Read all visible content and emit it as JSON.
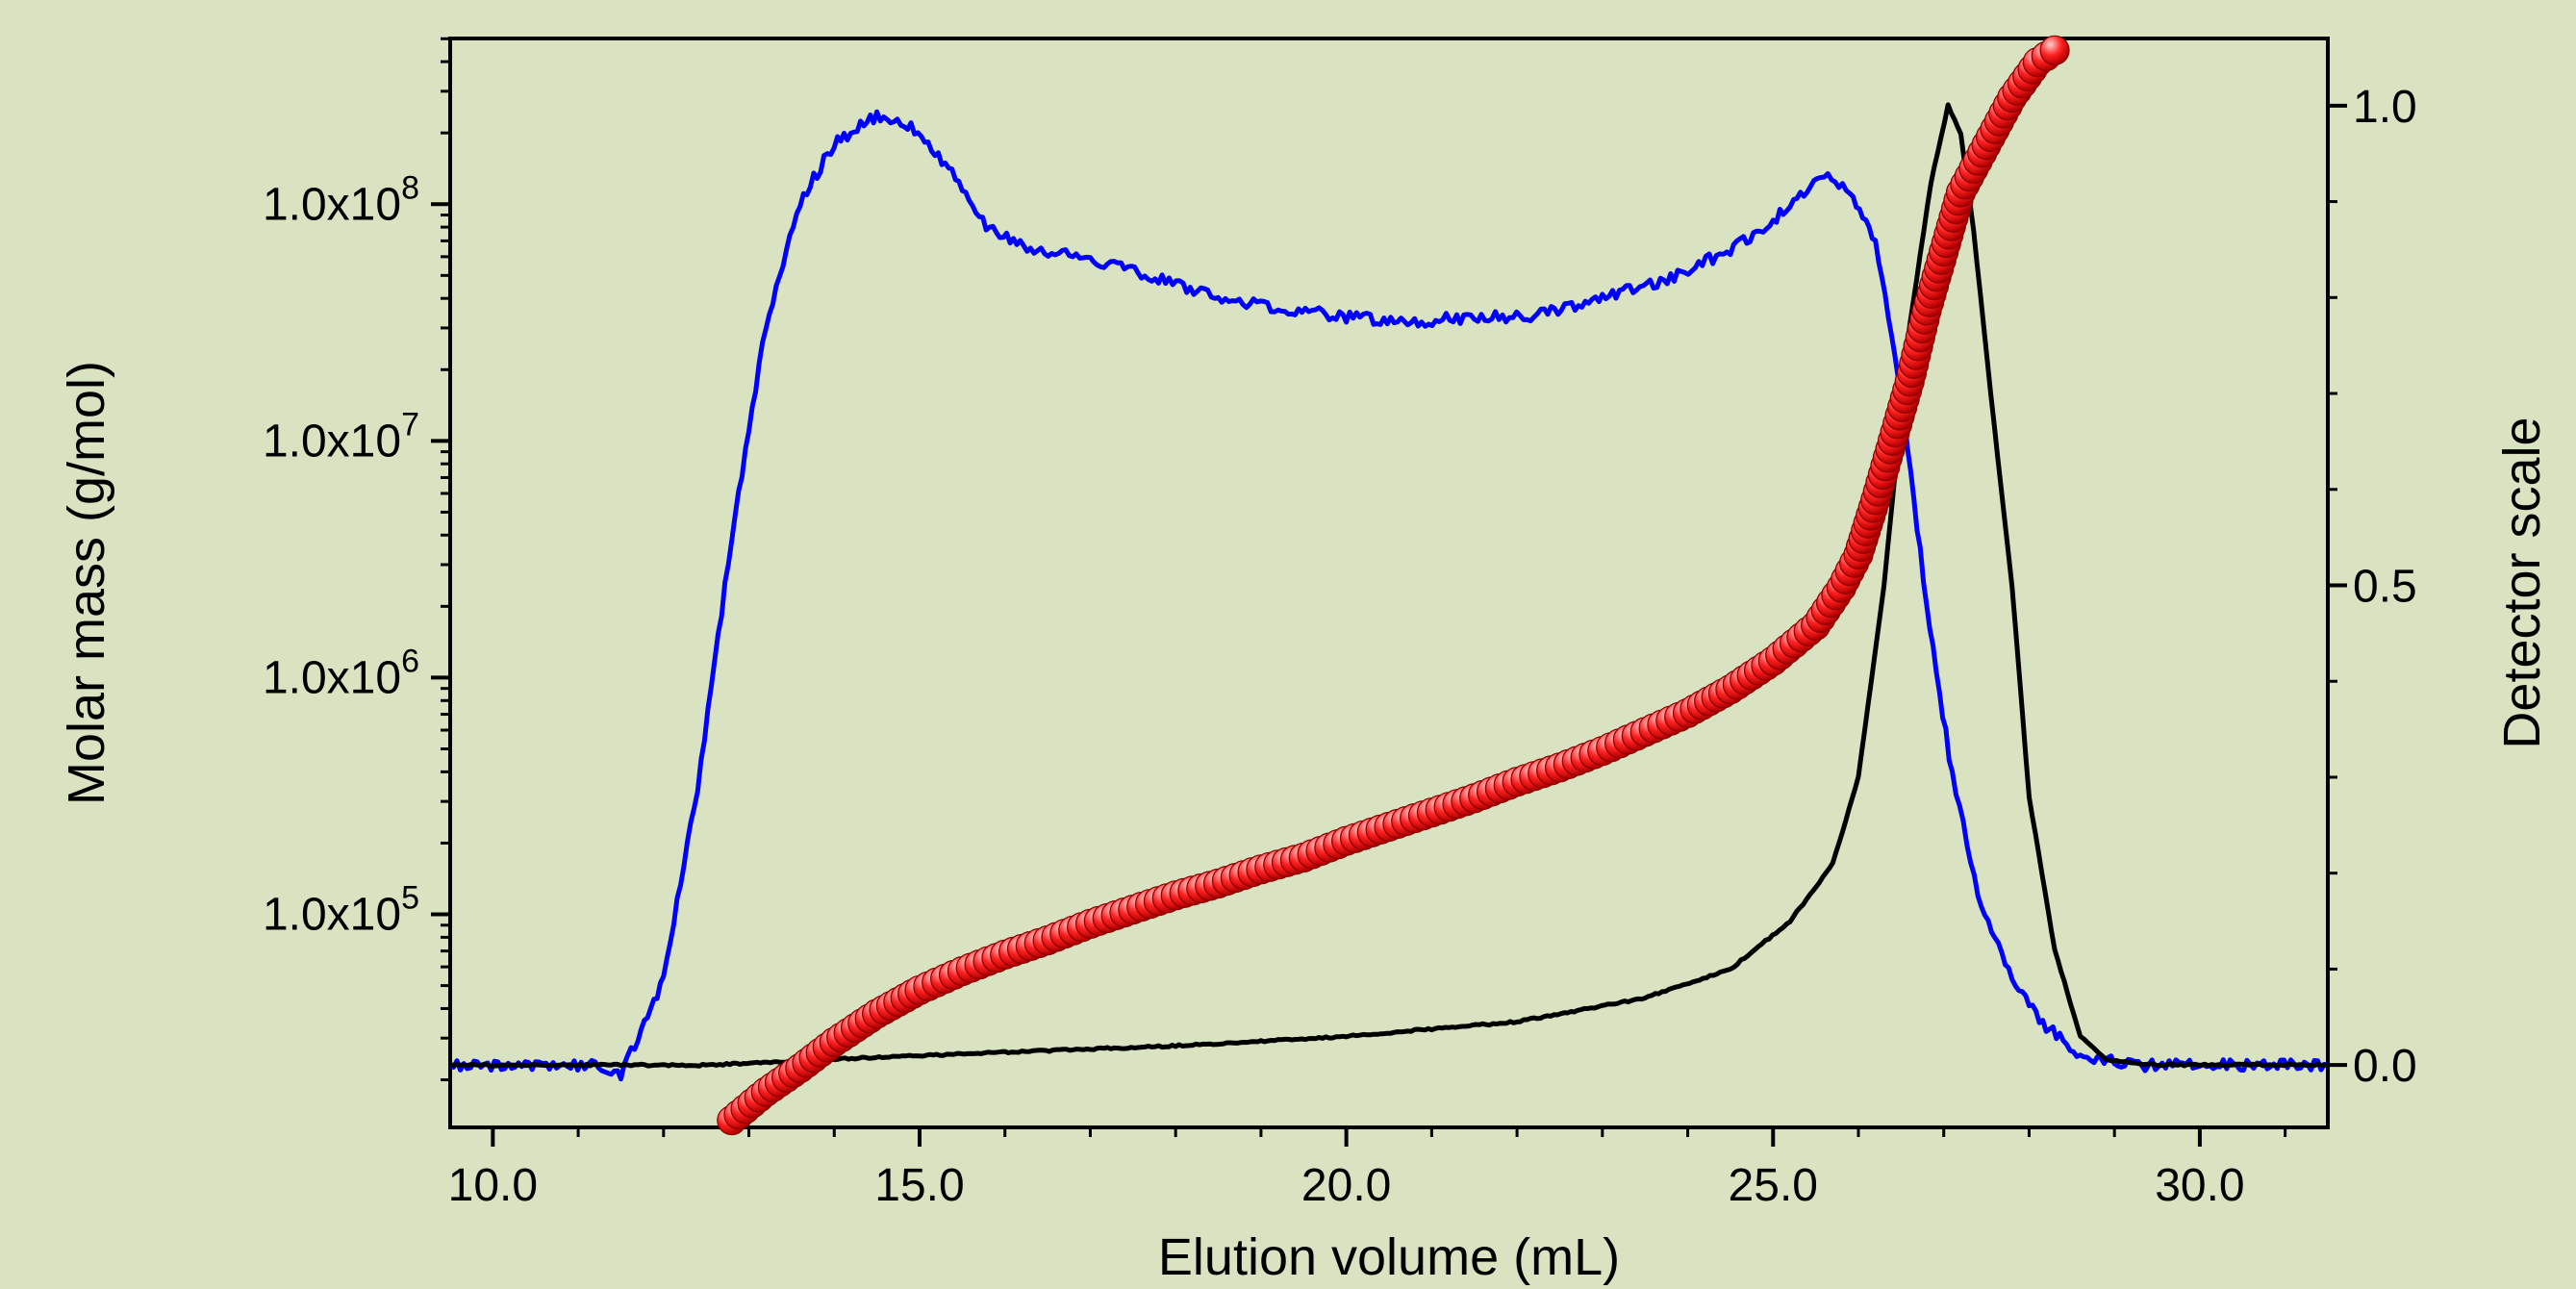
{
  "chart_data": {
    "type": "line",
    "title": "",
    "xlabel": "Elution volume (mL)",
    "ylabel_left": "Molar mass (g/mol)",
    "ylabel_right": "Detector scale",
    "xlim": [
      9.5,
      31.5
    ],
    "ylim_left_log10": [
      4.1,
      8.7
    ],
    "ylim_right": [
      -0.065,
      1.07
    ],
    "left_log_scale": true,
    "grid": false,
    "x_ticks": [
      {
        "value": 10,
        "label": "10.0"
      },
      {
        "value": 15,
        "label": "15.0"
      },
      {
        "value": 20,
        "label": "20.0"
      },
      {
        "value": 25,
        "label": "25.0"
      },
      {
        "value": 30,
        "label": "30.0"
      }
    ],
    "y_left_ticks": [
      {
        "exp": 5,
        "base": "1.0x10",
        "sup": "5"
      },
      {
        "exp": 6,
        "base": "1.0x10",
        "sup": "6"
      },
      {
        "exp": 7,
        "base": "1.0x10",
        "sup": "7"
      },
      {
        "exp": 8,
        "base": "1.0x10",
        "sup": "8"
      }
    ],
    "y_right_ticks": [
      {
        "value": 0.0,
        "label": "0.0"
      },
      {
        "value": 0.5,
        "label": "0.5"
      },
      {
        "value": 1.0,
        "label": "1.0"
      }
    ],
    "series": [
      {
        "axis": "right",
        "color": "#0000ff",
        "style": "line",
        "points": [
          [
            9.5,
            0.0
          ],
          [
            10.5,
            0.0
          ],
          [
            11.2,
            0.0
          ],
          [
            11.5,
            -0.01
          ],
          [
            11.7,
            0.03
          ],
          [
            12.0,
            0.09
          ],
          [
            12.4,
            0.29
          ],
          [
            12.8,
            0.55
          ],
          [
            13.2,
            0.77
          ],
          [
            13.6,
            0.9
          ],
          [
            14.0,
            0.96
          ],
          [
            14.5,
            0.99
          ],
          [
            14.9,
            0.98
          ],
          [
            15.3,
            0.94
          ],
          [
            15.7,
            0.88
          ],
          [
            16.3,
            0.85
          ],
          [
            17.0,
            0.84
          ],
          [
            17.8,
            0.82
          ],
          [
            18.5,
            0.8
          ],
          [
            19.2,
            0.79
          ],
          [
            20.0,
            0.78
          ],
          [
            20.8,
            0.775
          ],
          [
            21.5,
            0.78
          ],
          [
            22.2,
            0.78
          ],
          [
            23.0,
            0.8
          ],
          [
            23.8,
            0.82
          ],
          [
            24.5,
            0.85
          ],
          [
            25.0,
            0.88
          ],
          [
            25.6,
            0.93
          ],
          [
            25.9,
            0.91
          ],
          [
            26.2,
            0.86
          ],
          [
            26.5,
            0.7
          ],
          [
            26.8,
            0.48
          ],
          [
            27.1,
            0.3
          ],
          [
            27.4,
            0.18
          ],
          [
            27.8,
            0.09
          ],
          [
            28.2,
            0.04
          ],
          [
            28.6,
            0.01
          ],
          [
            29.2,
            0.0
          ],
          [
            30.0,
            0.0
          ],
          [
            31.5,
            0.0
          ]
        ]
      },
      {
        "axis": "right",
        "color": "#000000",
        "style": "line",
        "points": [
          [
            9.5,
            0.0
          ],
          [
            12.5,
            0.0
          ],
          [
            15.0,
            0.01
          ],
          [
            18.0,
            0.02
          ],
          [
            20.0,
            0.03
          ],
          [
            22.0,
            0.045
          ],
          [
            23.5,
            0.07
          ],
          [
            24.5,
            0.1
          ],
          [
            25.2,
            0.15
          ],
          [
            25.7,
            0.21
          ],
          [
            26.0,
            0.3
          ],
          [
            26.3,
            0.5
          ],
          [
            26.6,
            0.77
          ],
          [
            26.85,
            0.92
          ],
          [
            27.05,
            1.0
          ],
          [
            27.2,
            0.97
          ],
          [
            27.35,
            0.87
          ],
          [
            27.55,
            0.7
          ],
          [
            27.8,
            0.5
          ],
          [
            28.0,
            0.28
          ],
          [
            28.3,
            0.12
          ],
          [
            28.6,
            0.03
          ],
          [
            28.9,
            0.005
          ],
          [
            29.5,
            0.0
          ],
          [
            31.5,
            0.0
          ]
        ]
      },
      {
        "axis": "left",
        "color": "#ff2020",
        "style": "markers",
        "points": [
          [
            12.8,
            4.13
          ],
          [
            13.2,
            4.25
          ],
          [
            13.6,
            4.35
          ],
          [
            14.0,
            4.46
          ],
          [
            14.5,
            4.58
          ],
          [
            15.0,
            4.68
          ],
          [
            15.5,
            4.76
          ],
          [
            16.0,
            4.83
          ],
          [
            16.5,
            4.89
          ],
          [
            17.0,
            4.96
          ],
          [
            17.5,
            5.02
          ],
          [
            18.0,
            5.08
          ],
          [
            18.5,
            5.13
          ],
          [
            19.0,
            5.19
          ],
          [
            19.5,
            5.24
          ],
          [
            20.0,
            5.31
          ],
          [
            20.5,
            5.37
          ],
          [
            21.0,
            5.43
          ],
          [
            21.5,
            5.49
          ],
          [
            22.0,
            5.56
          ],
          [
            22.5,
            5.62
          ],
          [
            23.0,
            5.69
          ],
          [
            23.5,
            5.77
          ],
          [
            24.0,
            5.85
          ],
          [
            24.5,
            5.95
          ],
          [
            25.0,
            6.07
          ],
          [
            25.5,
            6.22
          ],
          [
            25.8,
            6.38
          ],
          [
            26.0,
            6.52
          ],
          [
            26.2,
            6.75
          ],
          [
            26.4,
            7.0
          ],
          [
            26.6,
            7.25
          ],
          [
            26.8,
            7.55
          ],
          [
            27.0,
            7.8
          ],
          [
            27.2,
            8.05
          ],
          [
            27.5,
            8.25
          ],
          [
            27.8,
            8.45
          ],
          [
            28.1,
            8.6
          ],
          [
            28.3,
            8.65
          ]
        ]
      }
    ]
  }
}
